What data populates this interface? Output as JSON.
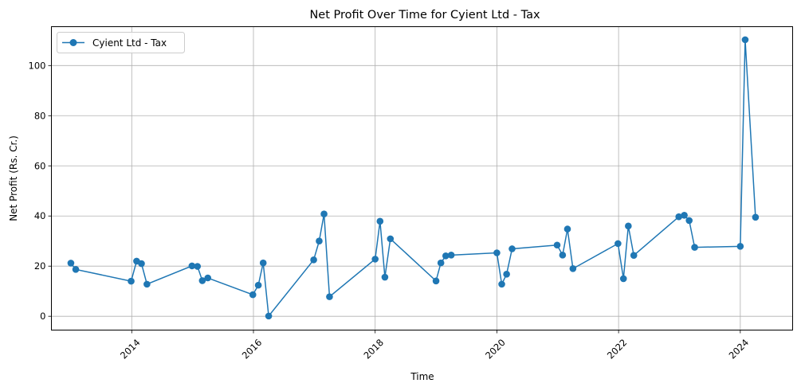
{
  "chart_data": {
    "type": "line",
    "title": "Net Profit Over Time for Cyient Ltd - Tax",
    "xlabel": "Time",
    "ylabel": "Net Profit (Rs. Cr.)",
    "xlim": [
      2012.68,
      2024.86
    ],
    "ylim": [
      -5.5,
      115.5
    ],
    "x_ticks": [
      2014,
      2016,
      2018,
      2020,
      2022,
      2024
    ],
    "x_tick_labels": [
      "2014",
      "2016",
      "2018",
      "2020",
      "2022",
      "2024"
    ],
    "y_ticks": [
      0,
      20,
      40,
      60,
      80,
      100
    ],
    "y_tick_labels": [
      "0",
      "20",
      "40",
      "60",
      "80",
      "100"
    ],
    "grid": true,
    "legend_position": "top-left",
    "colors": {
      "series": "#1f77b4",
      "grid": "#b0b0b0",
      "axis": "#000000"
    },
    "series": [
      {
        "name": "Cyient Ltd - Tax",
        "x": [
          2013.0,
          2013.08,
          2013.99,
          2014.08,
          2014.16,
          2014.25,
          2014.99,
          2015.08,
          2015.16,
          2015.25,
          2015.99,
          2016.08,
          2016.16,
          2016.25,
          2016.99,
          2017.08,
          2017.16,
          2017.25,
          2018.0,
          2018.08,
          2018.16,
          2018.25,
          2019.0,
          2019.08,
          2019.16,
          2019.25,
          2020.0,
          2020.08,
          2020.16,
          2020.25,
          2020.99,
          2021.08,
          2021.16,
          2021.25,
          2021.99,
          2022.08,
          2022.16,
          2022.25,
          2022.99,
          2023.08,
          2023.16,
          2023.25,
          2024.0,
          2024.08,
          2024.25
        ],
        "values": [
          21.2,
          18.7,
          14.0,
          22.0,
          21.0,
          12.8,
          20.1,
          19.9,
          14.2,
          15.3,
          8.6,
          12.4,
          21.3,
          0.1,
          22.5,
          30.0,
          40.8,
          7.8,
          22.8,
          37.9,
          15.6,
          30.9,
          14.1,
          21.3,
          24.1,
          24.4,
          25.3,
          12.8,
          16.8,
          26.9,
          28.4,
          24.4,
          34.8,
          19.0,
          29.0,
          15.0,
          36.0,
          24.3,
          39.7,
          40.3,
          38.2,
          27.5,
          27.9,
          110.3,
          39.5
        ]
      }
    ]
  }
}
